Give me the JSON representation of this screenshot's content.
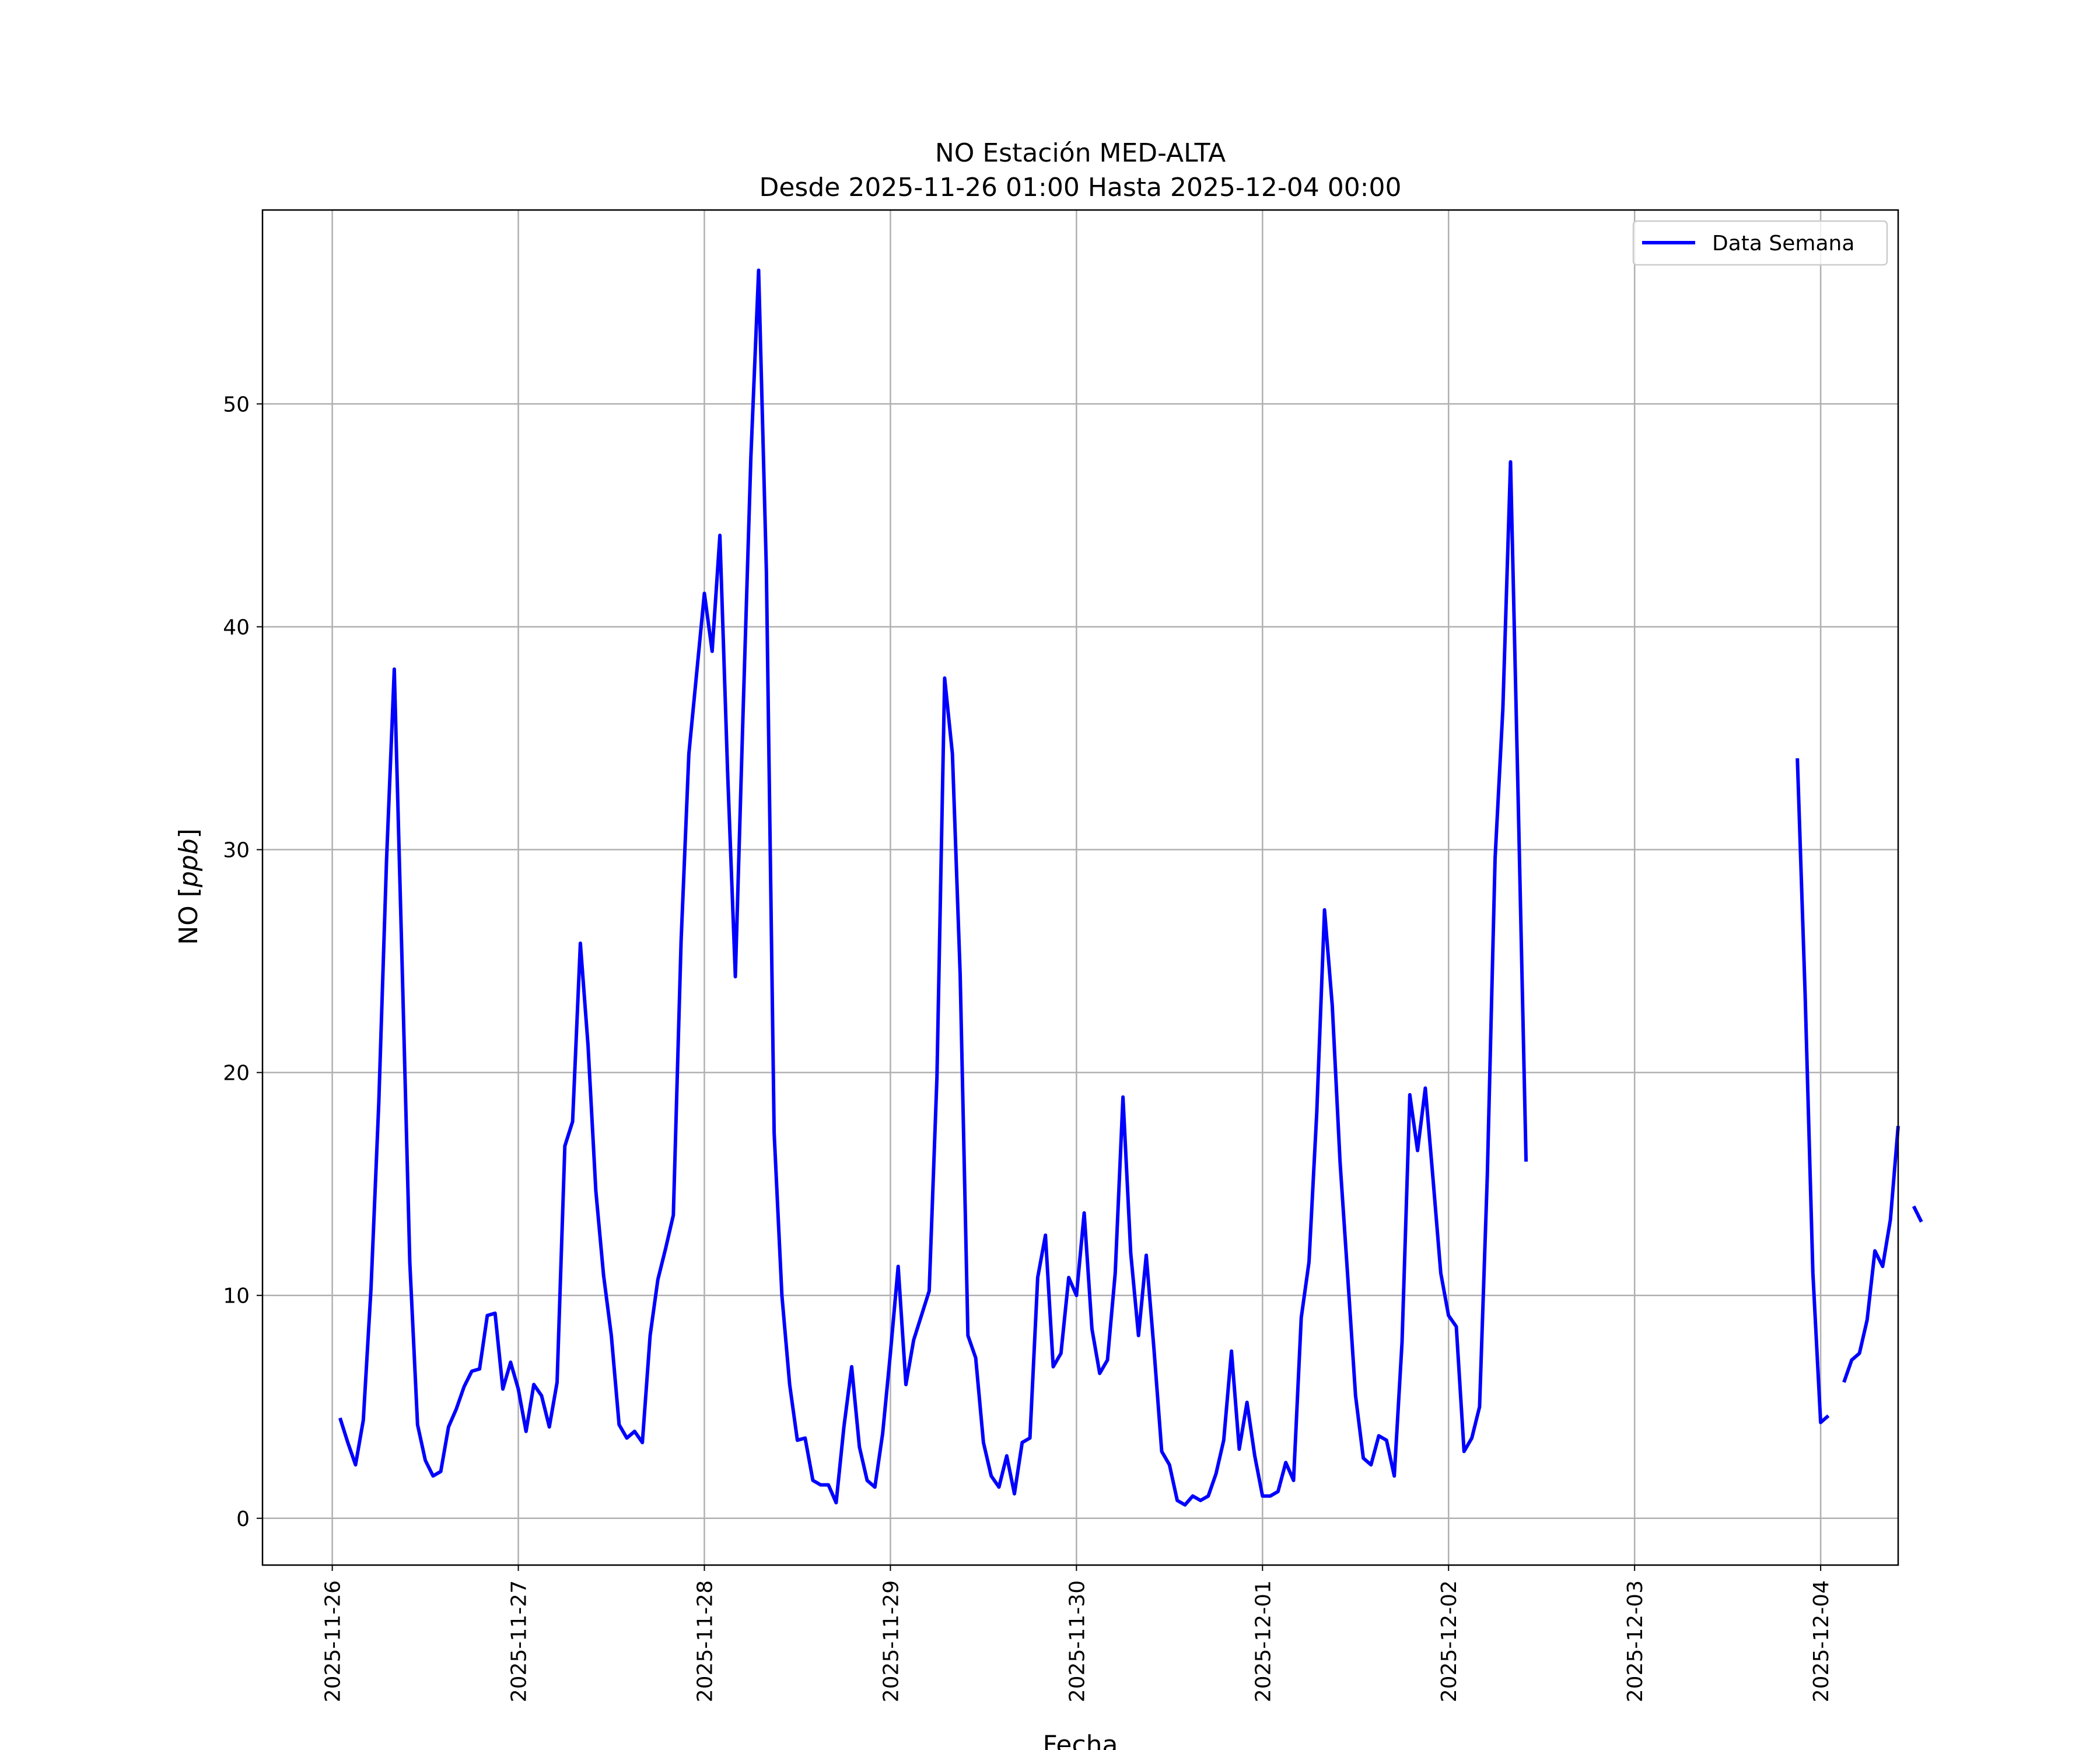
{
  "chart_data": {
    "type": "line",
    "title": "NO Estación MED-ALTA",
    "subtitle": "Desde 2025-11-26 01:00 Hasta 2025-12-04 00:00",
    "xlabel": "Fecha",
    "ylabel": "NO [ppb]",
    "ylabel_prefix": "NO [",
    "ylabel_unit": "ppb",
    "ylabel_suffix": "]",
    "x_start": "2025-11-26 01:00",
    "x_step_hours": 1,
    "xlim": [
      "2025-11-25 15:00",
      "2025-12-04 10:00"
    ],
    "ylim": [
      -2.1,
      58.7
    ],
    "xticks": [
      "2025-11-26",
      "2025-11-27",
      "2025-11-28",
      "2025-11-29",
      "2025-11-30",
      "2025-12-01",
      "2025-12-02",
      "2025-12-03",
      "2025-12-04"
    ],
    "yticks": [
      0,
      10,
      20,
      30,
      40,
      50
    ],
    "ytick_labels": [
      "0",
      "10",
      "20",
      "30",
      "40",
      "50"
    ],
    "grid": true,
    "legend_position": "top-right",
    "series": [
      {
        "name": "Data Semana",
        "color": "#0000ff",
        "values": [
          4.5,
          3.4,
          2.4,
          4.4,
          10.3,
          18.6,
          29.5,
          38.1,
          25.0,
          11.5,
          4.2,
          2.6,
          1.9,
          2.1,
          4.1,
          4.9,
          5.9,
          6.6,
          6.7,
          9.1,
          9.2,
          5.8,
          7.0,
          5.8,
          3.9,
          6.0,
          5.5,
          4.1,
          6.1,
          16.7,
          17.8,
          25.8,
          21.2,
          14.7,
          10.9,
          8.2,
          4.2,
          3.6,
          3.9,
          3.4,
          8.2,
          10.7,
          12.1,
          13.6,
          25.9,
          34.3,
          37.9,
          41.5,
          38.9,
          44.1,
          33.5,
          24.3,
          36.2,
          47.6,
          56.0,
          42.5,
          17.3,
          10.0,
          6.0,
          3.5,
          3.6,
          1.7,
          1.5,
          1.5,
          0.7,
          4.1,
          6.8,
          3.2,
          1.7,
          1.4,
          3.8,
          7.4,
          11.3,
          6.0,
          8.0,
          9.1,
          10.2,
          19.8,
          37.7,
          34.3,
          24.4,
          8.2,
          7.2,
          3.4,
          1.9,
          1.4,
          2.8,
          1.1,
          3.4,
          3.6,
          10.8,
          12.7,
          6.8,
          7.4,
          10.8,
          10.0,
          13.7,
          8.5,
          6.5,
          7.1,
          11.0,
          18.9,
          11.9,
          8.2,
          11.8,
          7.6,
          3.0,
          2.4,
          0.8,
          0.6,
          1.0,
          0.8,
          1.0,
          2.0,
          3.5,
          7.5,
          3.1,
          5.2,
          2.8,
          1.0,
          1.0,
          1.2,
          2.5,
          1.7,
          9.0,
          11.5,
          18.2,
          27.3,
          23.0,
          16.0,
          10.8,
          5.5,
          2.7,
          2.4,
          3.7,
          3.5,
          1.9,
          7.9,
          19.0,
          16.5,
          19.3,
          15.2,
          11.0,
          9.1,
          8.6,
          3.0,
          3.6,
          5.0,
          15.4,
          29.6,
          36.3,
          47.4,
          32.0,
          16.0,
          null,
          null,
          null,
          null,
          null,
          null,
          null,
          null,
          null,
          null,
          null,
          null,
          null,
          null,
          null,
          null,
          null,
          null,
          null,
          null,
          null,
          null,
          null,
          null,
          null,
          null,
          null,
          null,
          null,
          null,
          null,
          null,
          null,
          null,
          34.1,
          23.5,
          11.0,
          4.3,
          4.6,
          null,
          6.1,
          7.1,
          7.4,
          8.9,
          12.0,
          11.3,
          13.4,
          17.6,
          null,
          14.0,
          13.3
        ]
      }
    ]
  }
}
